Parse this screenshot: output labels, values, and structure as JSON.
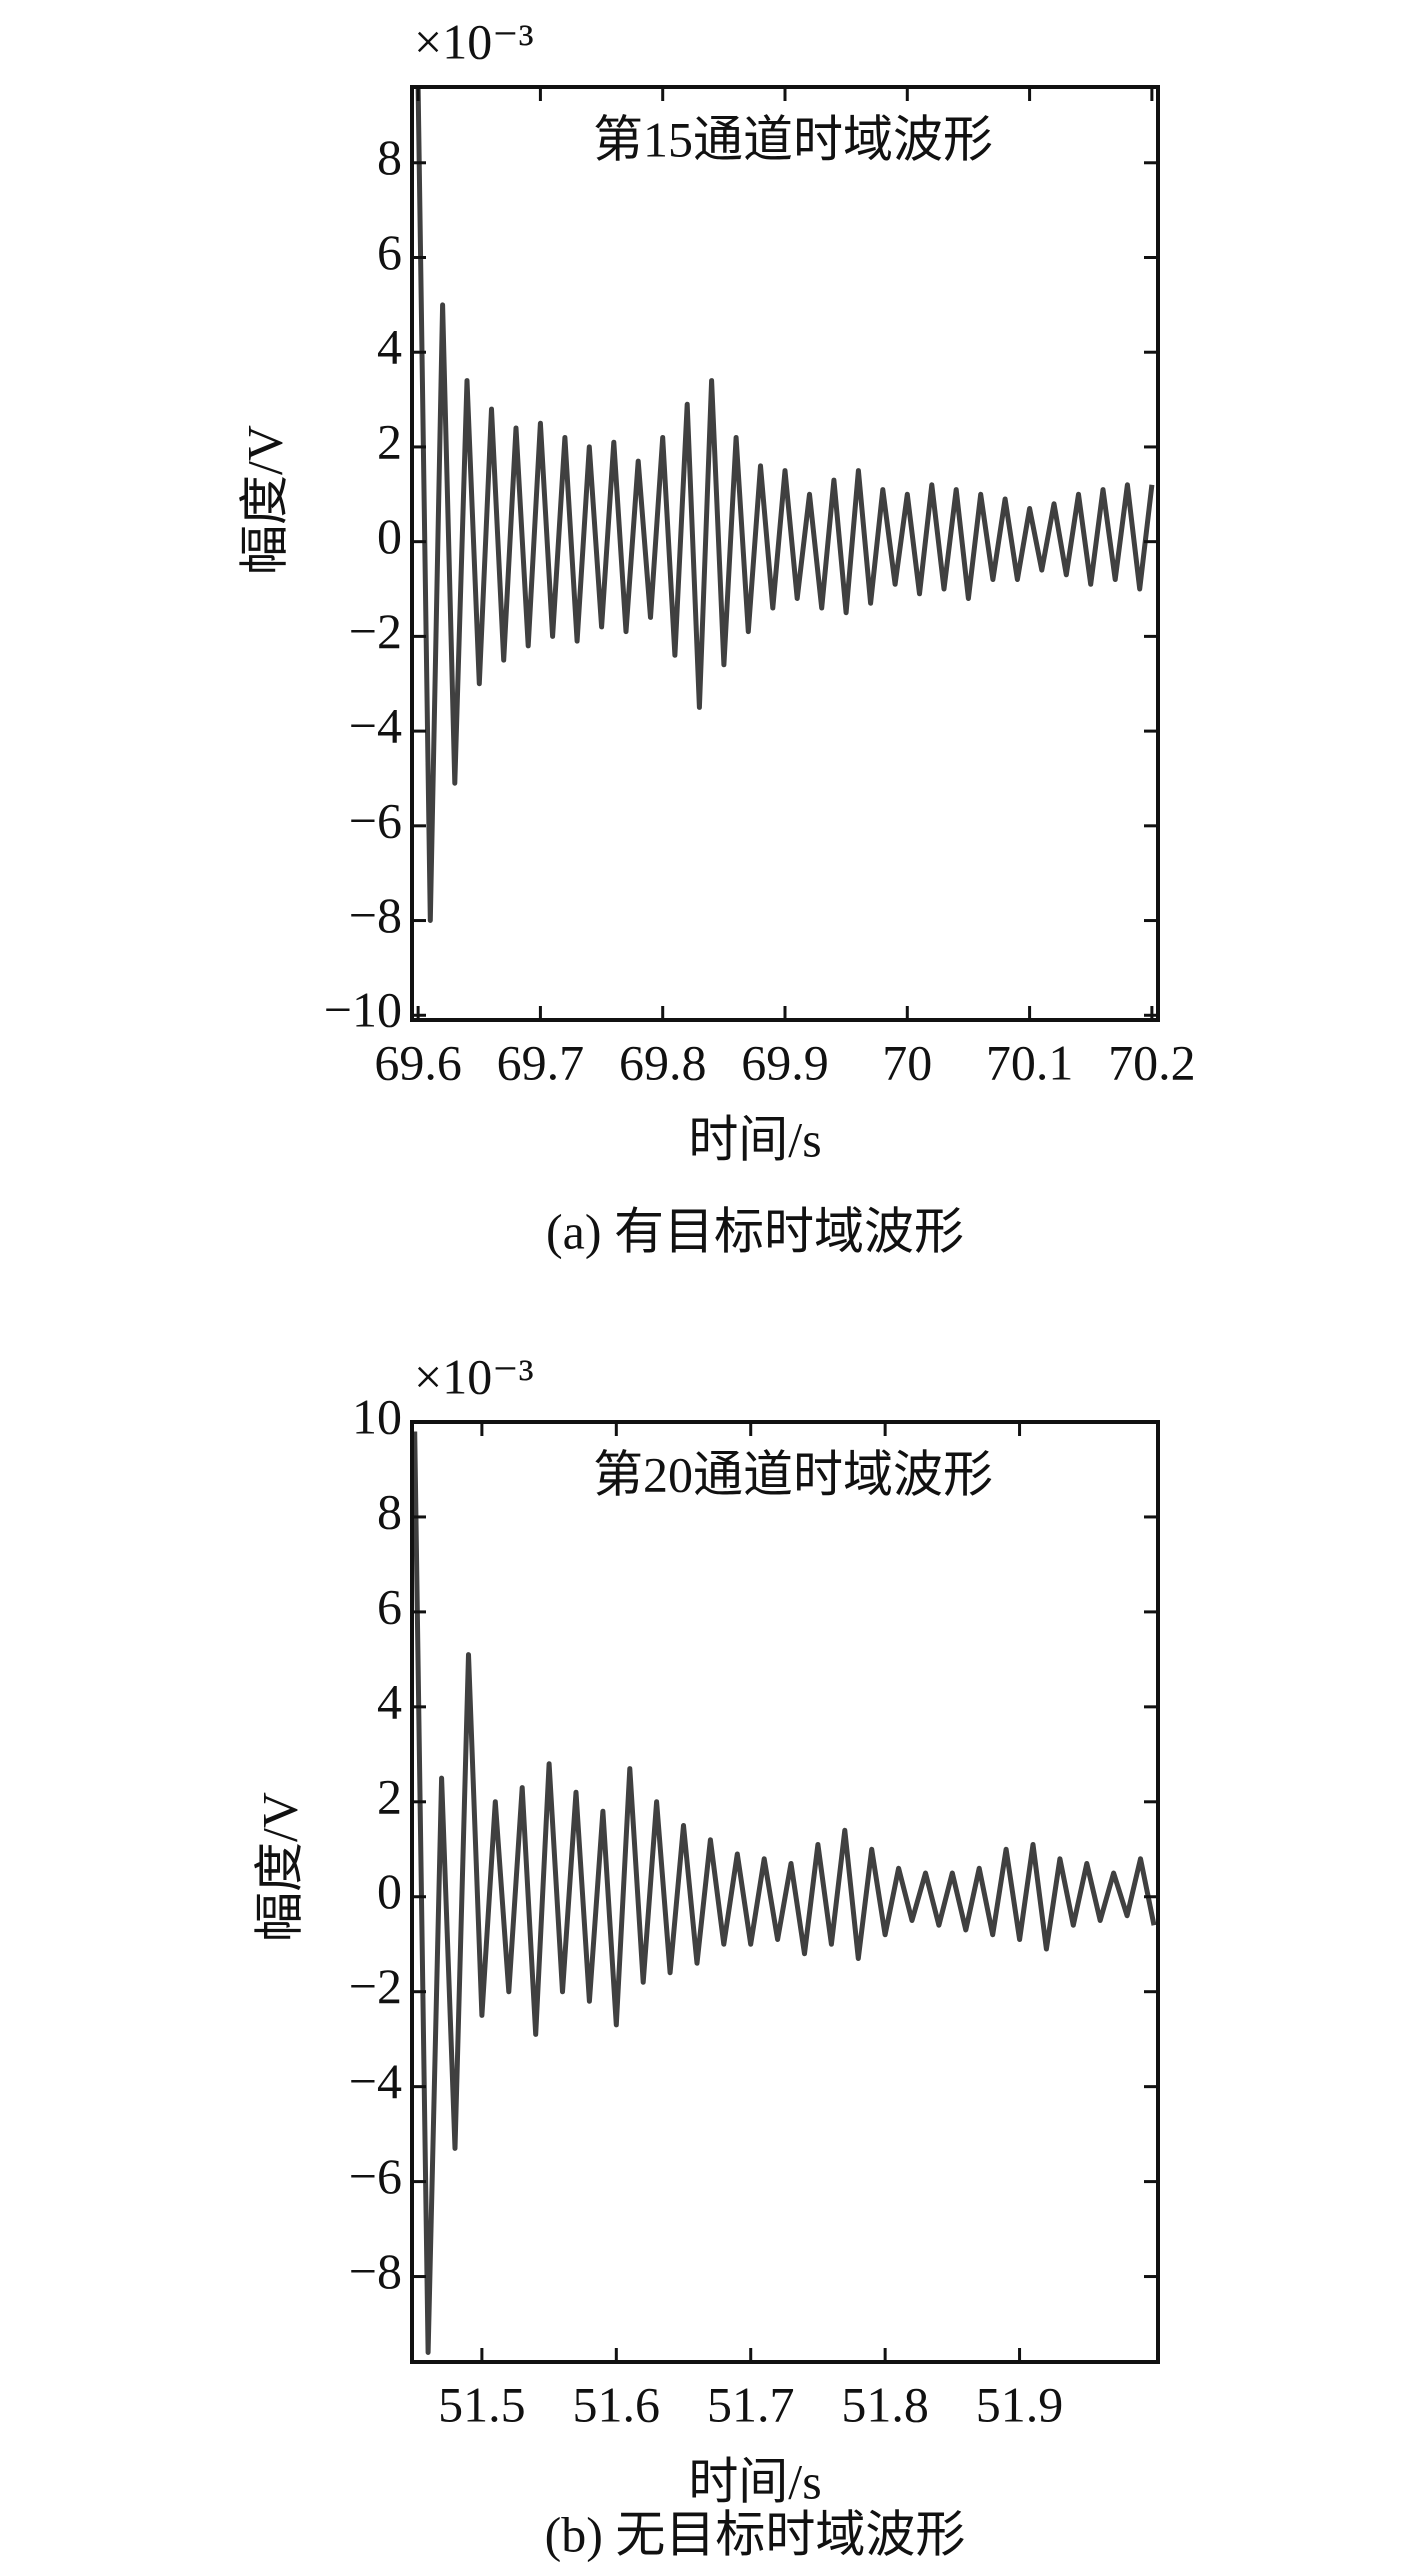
{
  "chart_data": [
    {
      "type": "line",
      "title": "第15通道时域波形",
      "multiplier": "×10⁻³",
      "ylabel": "幅度/V",
      "xlabel": "时间/s",
      "caption": "(a) 有目标时域波形",
      "color": "#404040",
      "x": [
        69.6,
        69.61,
        69.62,
        69.63,
        69.64,
        69.65,
        69.66,
        69.67,
        69.68,
        69.69,
        69.7,
        69.71,
        69.72,
        69.73,
        69.74,
        69.75,
        69.76,
        69.77,
        69.78,
        69.79,
        69.8,
        69.81,
        69.82,
        69.83,
        69.84,
        69.85,
        69.86,
        69.87,
        69.88,
        69.89,
        69.9,
        69.91,
        69.92,
        69.93,
        69.94,
        69.95,
        69.96,
        69.97,
        69.98,
        69.99,
        70.0,
        70.01,
        70.02,
        70.03,
        70.04,
        70.05,
        70.06,
        70.07,
        70.08,
        70.09,
        70.1,
        70.11,
        70.12,
        70.13,
        70.14,
        70.15,
        70.16,
        70.17,
        70.18,
        70.19,
        70.2
      ],
      "values": [
        9.6,
        -8.0,
        5.0,
        -5.1,
        3.4,
        -3.0,
        2.8,
        -2.5,
        2.4,
        -2.2,
        2.5,
        -2.0,
        2.2,
        -2.1,
        2.0,
        -1.8,
        2.1,
        -1.9,
        1.7,
        -1.6,
        2.2,
        -2.4,
        2.9,
        -3.5,
        3.4,
        -2.6,
        2.2,
        -1.9,
        1.6,
        -1.4,
        1.5,
        -1.2,
        1.0,
        -1.4,
        1.3,
        -1.5,
        1.5,
        -1.3,
        1.1,
        -0.9,
        1.0,
        -1.1,
        1.2,
        -1.0,
        1.1,
        -1.2,
        1.0,
        -0.8,
        0.9,
        -0.8,
        0.7,
        -0.6,
        0.8,
        -0.7,
        1.0,
        -0.9,
        1.1,
        -0.8,
        1.2,
        -1.0,
        1.2
      ],
      "xlim": [
        69.595,
        70.205
      ],
      "xticks": [
        69.6,
        69.7,
        69.8,
        69.9,
        70,
        70.1,
        70.2
      ],
      "ylim": [
        -10.1,
        9.6
      ],
      "yticks": [
        {
          "value": -10,
          "label": "−10"
        },
        {
          "value": -8,
          "label": "−8"
        },
        {
          "value": -6,
          "label": "−6"
        },
        {
          "value": -4,
          "label": "−4"
        },
        {
          "value": -2,
          "label": "−2"
        },
        0,
        2,
        4,
        6,
        8
      ]
    },
    {
      "type": "line",
      "title": "第20通道时域波形",
      "multiplier": "×10⁻³",
      "ylabel": "幅度/V",
      "xlabel": "时间/s",
      "caption": "(b) 无目标时域波形",
      "color": "#404040",
      "x": [
        51.45,
        51.46,
        51.47,
        51.48,
        51.49,
        51.5,
        51.51,
        51.52,
        51.53,
        51.54,
        51.55,
        51.56,
        51.57,
        51.58,
        51.59,
        51.6,
        51.61,
        51.62,
        51.63,
        51.64,
        51.65,
        51.66,
        51.67,
        51.68,
        51.69,
        51.7,
        51.71,
        51.72,
        51.73,
        51.74,
        51.75,
        51.76,
        51.77,
        51.78,
        51.79,
        51.8,
        51.81,
        51.82,
        51.83,
        51.84,
        51.85,
        51.86,
        51.87,
        51.88,
        51.89,
        51.9,
        51.91,
        51.92,
        51.93,
        51.94,
        51.95,
        51.96,
        51.97,
        51.98,
        51.99,
        52.0
      ],
      "values": [
        9.8,
        -9.6,
        2.5,
        -5.3,
        5.1,
        -2.5,
        2.0,
        -2.0,
        2.3,
        -2.9,
        2.8,
        -2.0,
        2.2,
        -2.2,
        1.8,
        -2.7,
        2.7,
        -1.8,
        2.0,
        -1.6,
        1.5,
        -1.4,
        1.2,
        -1.0,
        0.9,
        -1.0,
        0.8,
        -0.9,
        0.7,
        -1.2,
        1.1,
        -1.0,
        1.4,
        -1.3,
        1.0,
        -0.8,
        0.6,
        -0.5,
        0.5,
        -0.6,
        0.5,
        -0.7,
        0.6,
        -0.8,
        1.0,
        -0.9,
        1.1,
        -1.1,
        0.8,
        -0.6,
        0.7,
        -0.5,
        0.5,
        -0.4,
        0.8,
        -0.6
      ],
      "xlim": [
        51.448,
        52.003
      ],
      "xticks": [
        51.5,
        51.6,
        51.7,
        51.8,
        51.9
      ],
      "ylim": [
        -9.8,
        10
      ],
      "yticks": [
        {
          "value": -8,
          "label": "−8"
        },
        {
          "value": -6,
          "label": "−6"
        },
        {
          "value": -4,
          "label": "−4"
        },
        {
          "value": -2,
          "label": "−2"
        },
        0,
        2,
        4,
        6,
        8,
        10
      ]
    }
  ]
}
